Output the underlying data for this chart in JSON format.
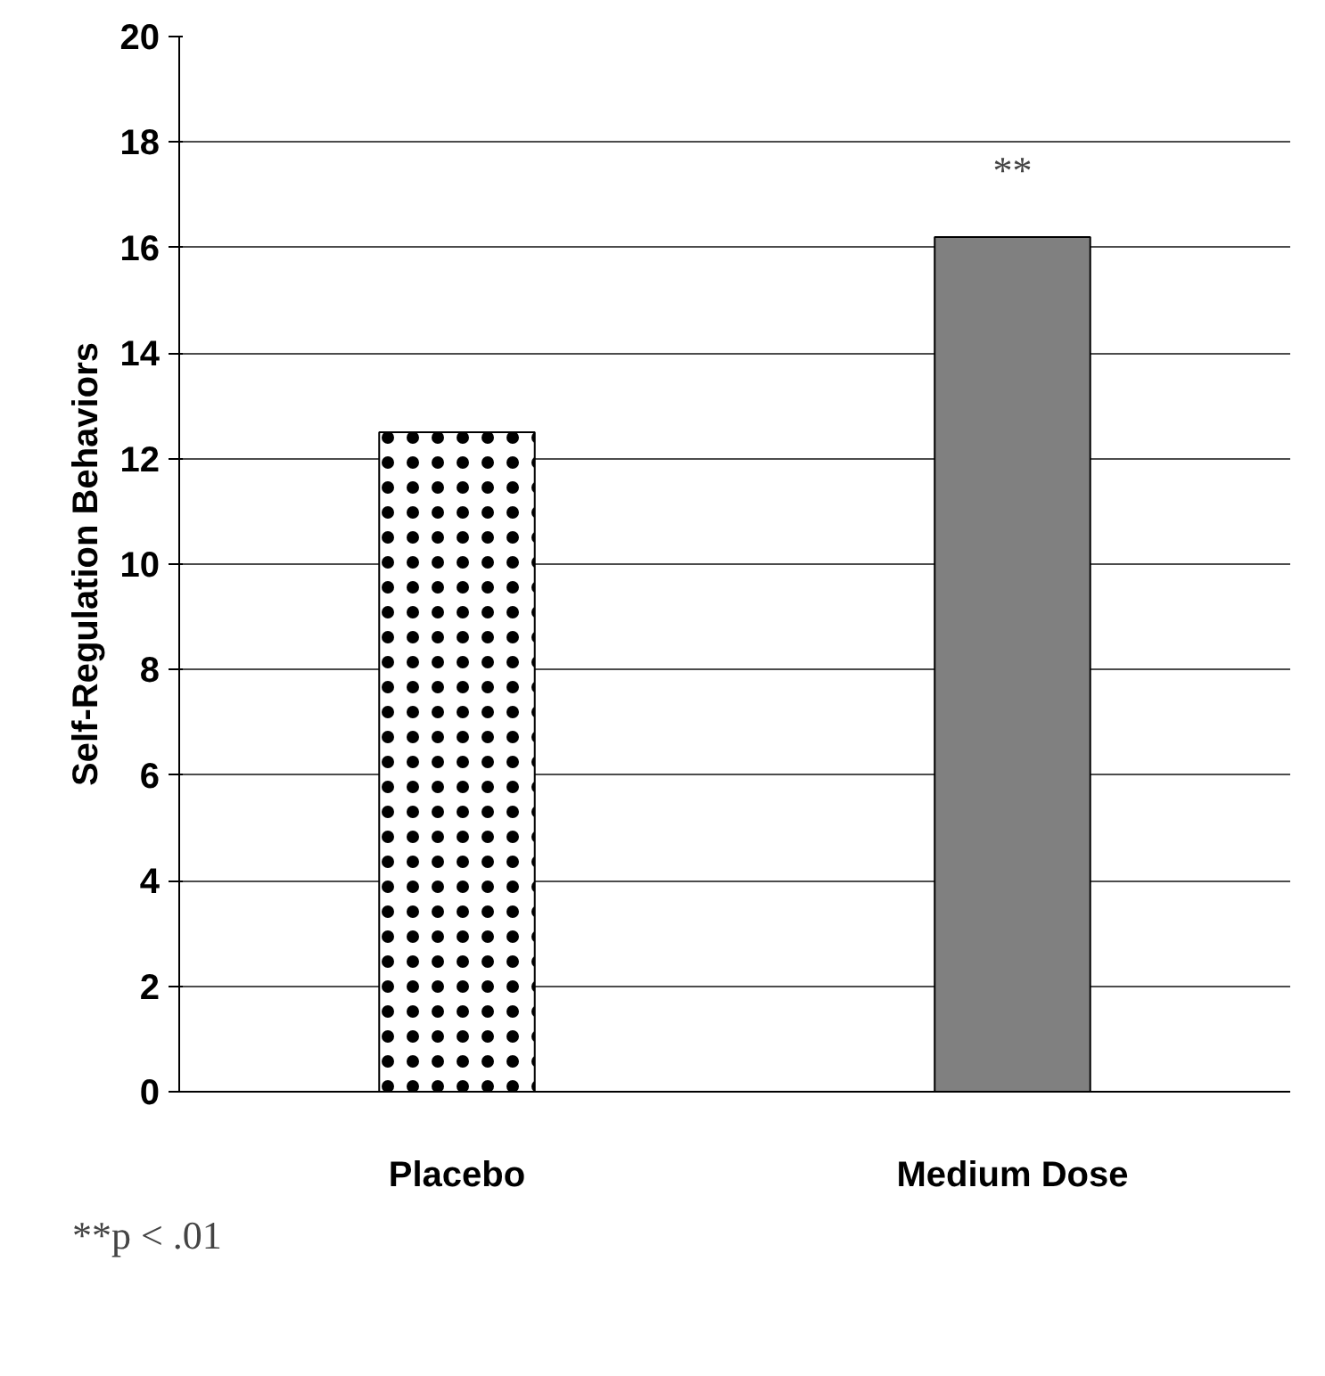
{
  "chart_data": {
    "type": "bar",
    "ylabel": "Self-Regulation Behaviors",
    "categories": [
      "Placebo",
      "Medium Dose"
    ],
    "values": [
      12.5,
      16.2
    ],
    "colors": [
      "#ffffff",
      "#808080"
    ],
    "ylim": [
      0,
      20
    ],
    "yticks": [
      0,
      2,
      4,
      6,
      8,
      10,
      12,
      14,
      16,
      18,
      20
    ],
    "grid": "y",
    "annotations": [
      "**",
      "**p < .01"
    ]
  }
}
